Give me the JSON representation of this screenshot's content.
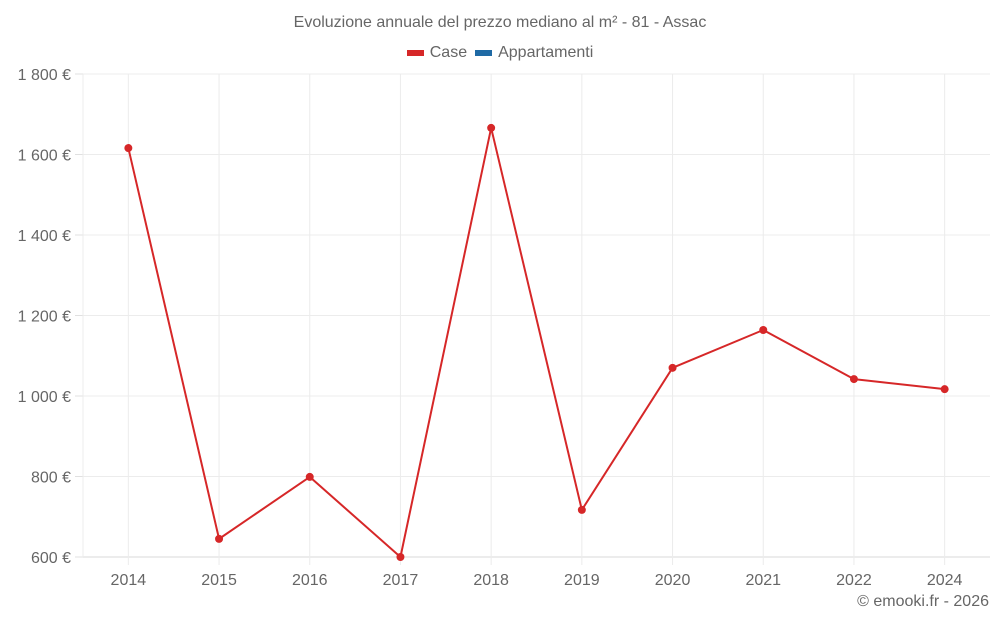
{
  "header": {
    "title": "Evoluzione annuale del prezzo mediano al m² - 81 - Assac"
  },
  "legend": {
    "items": [
      {
        "label": "Case",
        "color": "#d62728"
      },
      {
        "label": "Appartamenti",
        "color": "#1f6aa5"
      }
    ]
  },
  "footer": {
    "credit": "© emooki.fr - 2026"
  },
  "chart_data": {
    "type": "line",
    "title": "Evoluzione annuale del prezzo mediano al m² - 81 - Assac",
    "xlabel": "",
    "ylabel": "",
    "categories": [
      "2014",
      "2015",
      "2016",
      "2017",
      "2018",
      "2019",
      "2020",
      "2021",
      "2022",
      "2024"
    ],
    "series": [
      {
        "name": "Case",
        "color": "#d62728",
        "values": [
          1616,
          645,
          799,
          600,
          1666,
          717,
          1070,
          1164,
          1042,
          1017
        ]
      },
      {
        "name": "Appartamenti",
        "color": "#1f6aa5",
        "values": []
      }
    ],
    "ylim": [
      600,
      1800
    ],
    "yticks": [
      600,
      800,
      1000,
      1200,
      1400,
      1600,
      1800
    ],
    "ytick_labels": [
      "600 €",
      "800 €",
      "1 000 €",
      "1 200 €",
      "1 400 €",
      "1 600 €",
      "1 800 €"
    ],
    "grid": true,
    "legend_position": "top"
  }
}
